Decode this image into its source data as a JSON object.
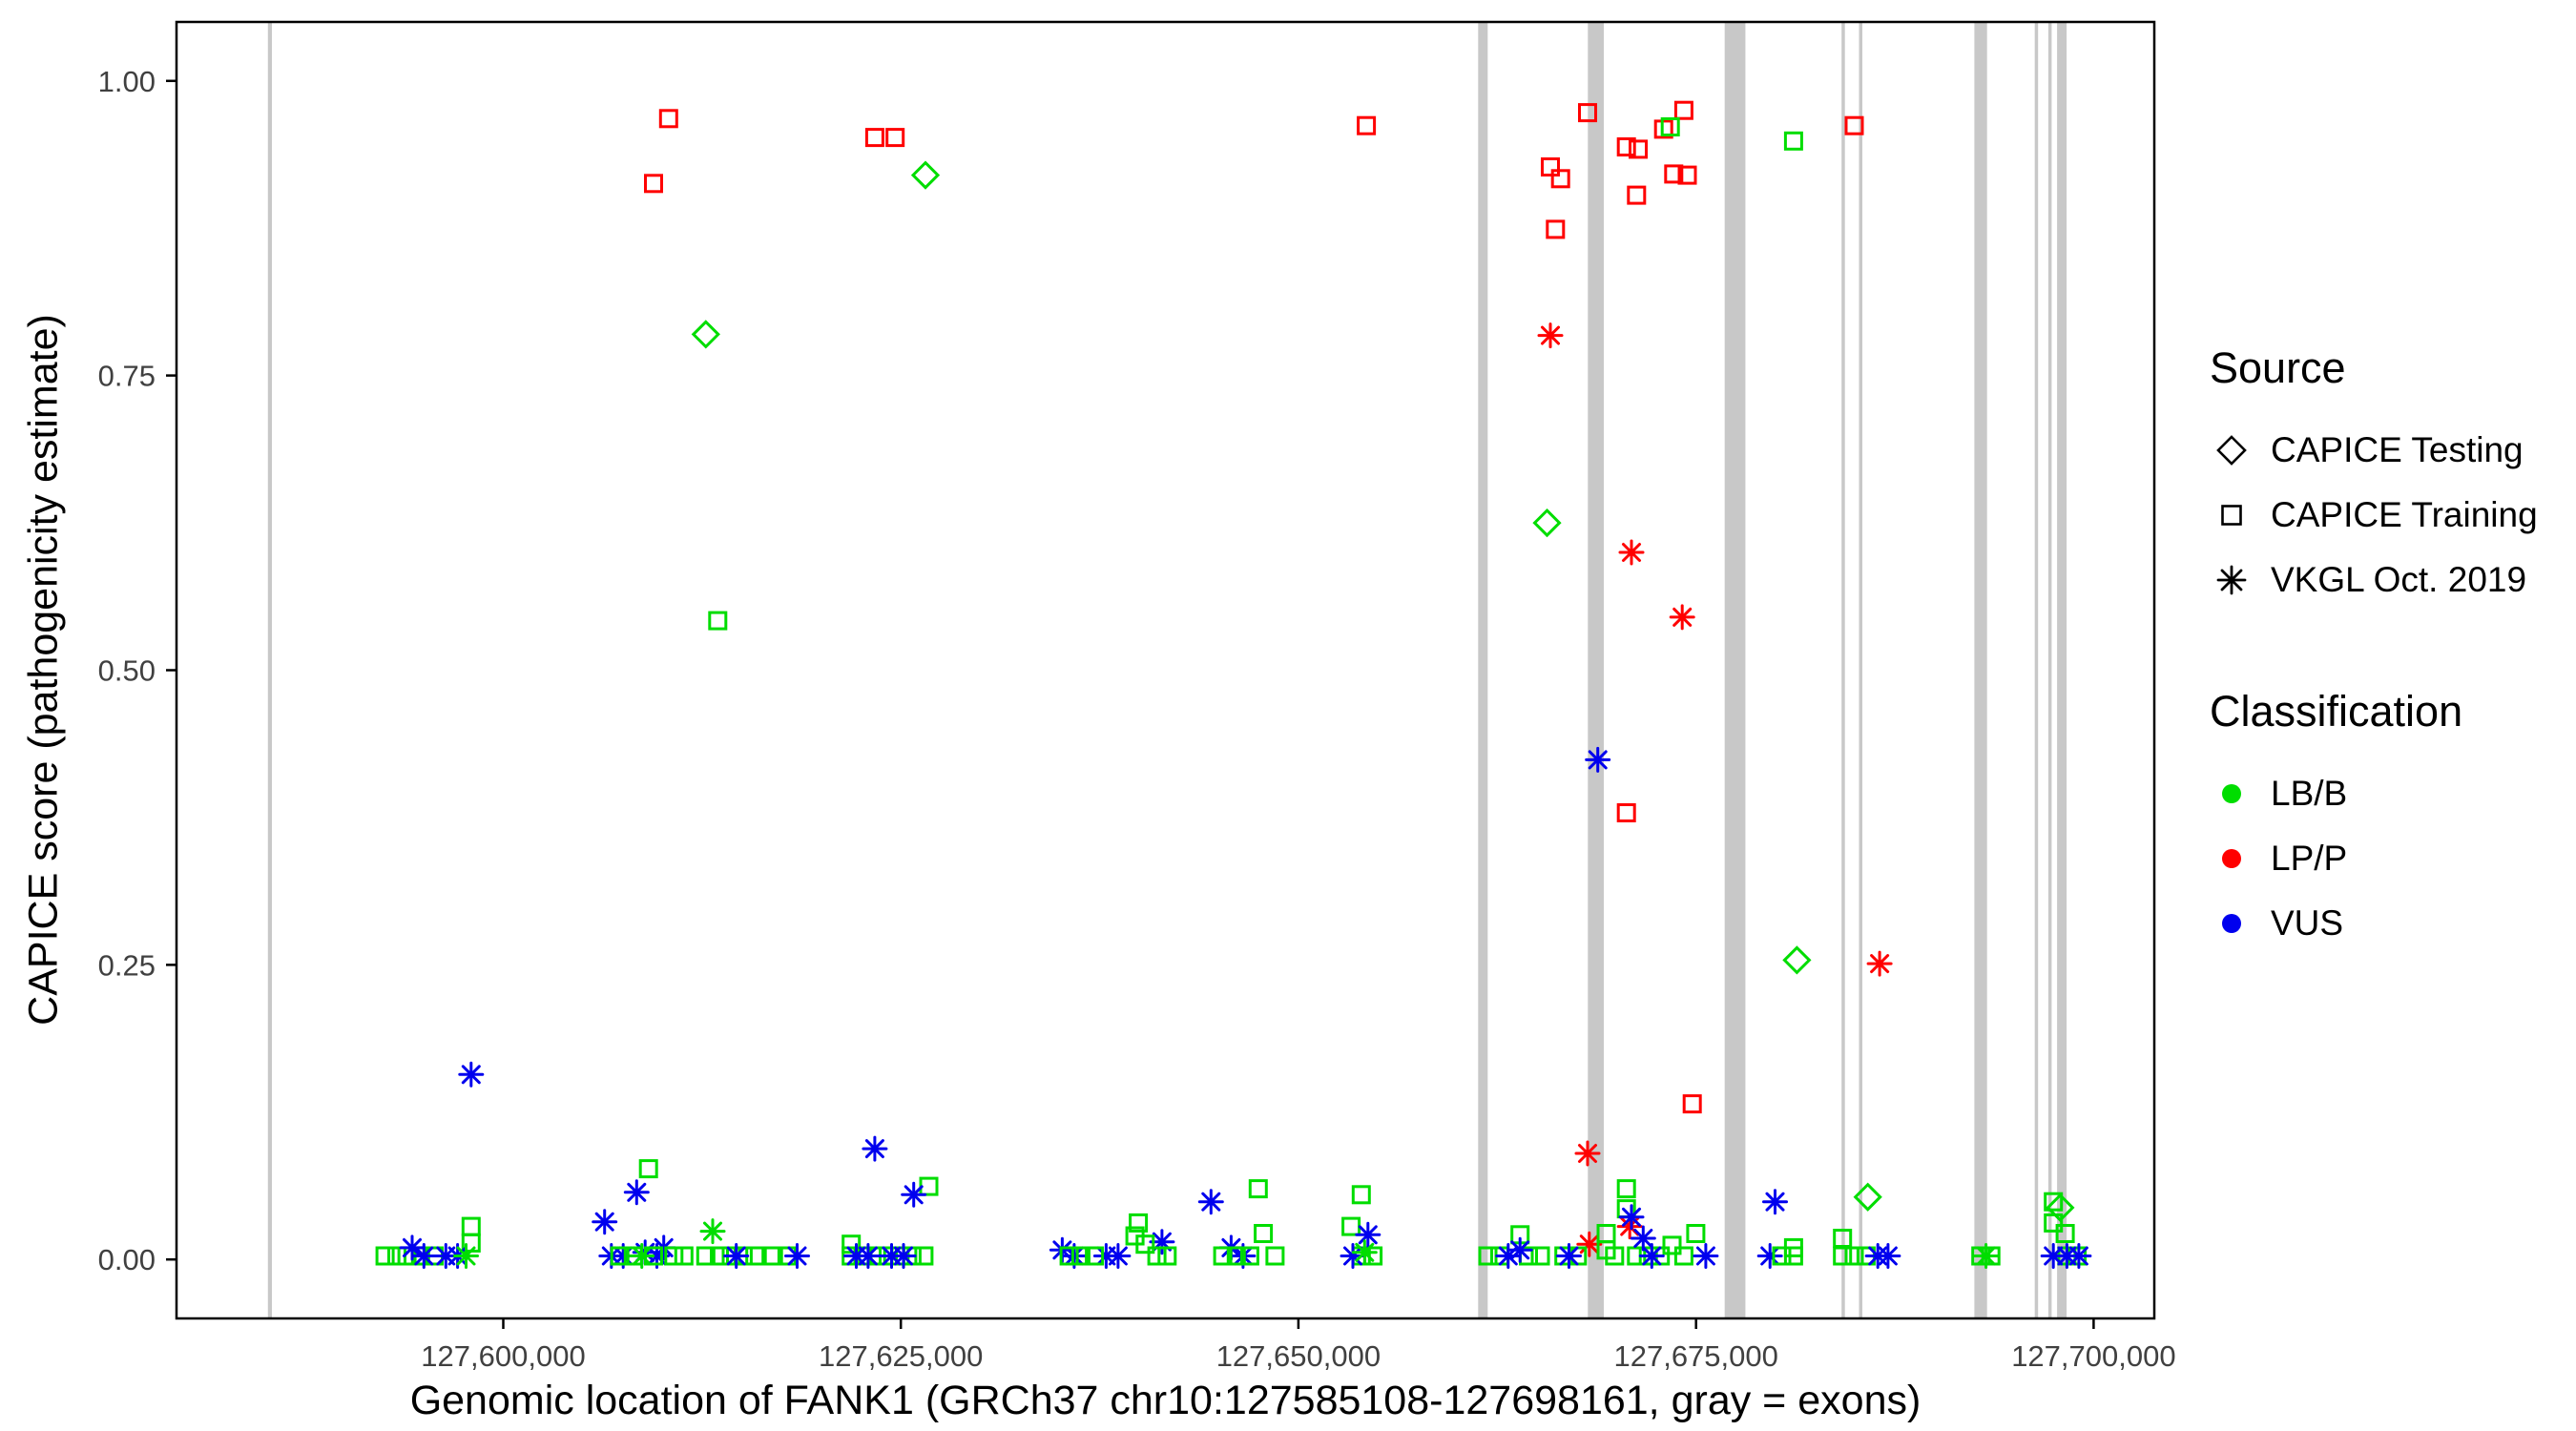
{
  "legend": {
    "source": {
      "title": "Source",
      "items": [
        {
          "label": "CAPICE Testing",
          "marker": "diamond"
        },
        {
          "label": "CAPICE Training",
          "marker": "square"
        },
        {
          "label": "VKGL Oct. 2019",
          "marker": "asterisk"
        }
      ]
    },
    "classification": {
      "title": "Classification",
      "items": [
        {
          "label": "LB/B",
          "color": "#00dd00"
        },
        {
          "label": "LP/P",
          "color": "#ff0000"
        },
        {
          "label": "VUS",
          "color": "#0000ee"
        }
      ]
    }
  },
  "chart_data": {
    "type": "scatter",
    "title": "",
    "xlabel": "Genomic location of FANK1 (GRCh37 chr10:127585108-127698161, gray = exons)",
    "ylabel": "CAPICE score (pathogenicity estimate)",
    "xlim": [
      127579455,
      127703814
    ],
    "ylim": [
      -0.05,
      1.05
    ],
    "grid": false,
    "legend_position": "right",
    "xticks": [
      {
        "value": 127600000,
        "label": "127,600,000"
      },
      {
        "value": 127625000,
        "label": "127,625,000"
      },
      {
        "value": 127650000,
        "label": "127,650,000"
      },
      {
        "value": 127675000,
        "label": "127,675,000"
      },
      {
        "value": 127700000,
        "label": "127,700,000"
      }
    ],
    "yticks": [
      {
        "value": 0.0,
        "label": "0.00"
      },
      {
        "value": 0.25,
        "label": "0.25"
      },
      {
        "value": 0.5,
        "label": "0.50"
      },
      {
        "value": 0.75,
        "label": "0.75"
      },
      {
        "value": 1.0,
        "label": "1.00"
      }
    ],
    "exon_color": "#c8c8c8",
    "colors": {
      "B": "#00dd00",
      "P": "#ff0000",
      "U": "#0000ee"
    },
    "codes": {
      "source": {
        "T": "CAPICE Training (open square)",
        "E": "CAPICE Testing (open diamond)",
        "V": "VKGL Oct. 2019 (asterisk)"
      },
      "classification": {
        "B": "LB/B (green)",
        "P": "LP/P (red)",
        "U": "VUS (blue)"
      }
    },
    "point_format": [
      "x_genomic_position",
      "capice_score",
      "source_code",
      "classification_code"
    ],
    "exons": [
      [
        127585200,
        127585450
      ],
      [
        127661300,
        127661900
      ],
      [
        127668200,
        127669200
      ],
      [
        127676800,
        127678100
      ],
      [
        127684150,
        127684320
      ],
      [
        127685250,
        127685420
      ],
      [
        127692500,
        127693300
      ],
      [
        127696300,
        127696460
      ],
      [
        127697150,
        127697310
      ],
      [
        127697700,
        127698300
      ]
    ],
    "points": [
      [
        127610400,
        0.968,
        "T",
        "P"
      ],
      [
        127609450,
        0.913,
        "T",
        "P"
      ],
      [
        127623360,
        0.952,
        "T",
        "P"
      ],
      [
        127624640,
        0.952,
        "T",
        "P"
      ],
      [
        127654270,
        0.962,
        "T",
        "P"
      ],
      [
        127665840,
        0.927,
        "T",
        "P"
      ],
      [
        127666480,
        0.917,
        "T",
        "P"
      ],
      [
        127666160,
        0.874,
        "T",
        "P"
      ],
      [
        127668180,
        0.973,
        "T",
        "P"
      ],
      [
        127670620,
        0.944,
        "T",
        "P"
      ],
      [
        127671360,
        0.942,
        "T",
        "P"
      ],
      [
        127671260,
        0.903,
        "T",
        "P"
      ],
      [
        127672960,
        0.959,
        "T",
        "P"
      ],
      [
        127674230,
        0.975,
        "T",
        "P"
      ],
      [
        127673600,
        0.921,
        "T",
        "P"
      ],
      [
        127674450,
        0.92,
        "T",
        "P"
      ],
      [
        127670620,
        0.379,
        "T",
        "P"
      ],
      [
        127674760,
        0.132,
        "T",
        "P"
      ],
      [
        127684950,
        0.962,
        "T",
        "P"
      ],
      [
        127665840,
        0.784,
        "V",
        "P"
      ],
      [
        127670940,
        0.6,
        "V",
        "P"
      ],
      [
        127674130,
        0.545,
        "V",
        "P"
      ],
      [
        127686540,
        0.251,
        "V",
        "P"
      ],
      [
        127668180,
        0.09,
        "V",
        "P"
      ],
      [
        127668290,
        0.013,
        "V",
        "P"
      ],
      [
        127670830,
        0.028,
        "V",
        "P"
      ],
      [
        127668820,
        0.424,
        "V",
        "U"
      ],
      [
        127597980,
        0.157,
        "V",
        "U"
      ],
      [
        127626550,
        0.92,
        "E",
        "B"
      ],
      [
        127612740,
        0.785,
        "E",
        "B"
      ],
      [
        127665630,
        0.625,
        "E",
        "B"
      ],
      [
        127681340,
        0.254,
        "E",
        "B"
      ],
      [
        127685800,
        0.053,
        "E",
        "B"
      ],
      [
        127697900,
        0.044,
        "E",
        "B"
      ],
      [
        127613490,
        0.542,
        "T",
        "B"
      ],
      [
        127673380,
        0.961,
        "T",
        "B"
      ],
      [
        127681130,
        0.949,
        "T",
        "B"
      ],
      [
        127592570,
        0.003,
        "T",
        "B"
      ],
      [
        127593310,
        0.003,
        "T",
        "B"
      ],
      [
        127593950,
        0.003,
        "T",
        "B"
      ],
      [
        127594800,
        0.003,
        "T",
        "B"
      ],
      [
        127595650,
        0.003,
        "T",
        "B"
      ],
      [
        127597980,
        0.028,
        "T",
        "B"
      ],
      [
        127597980,
        0.014,
        "T",
        "B"
      ],
      [
        127594270,
        0.01,
        "V",
        "U"
      ],
      [
        127595010,
        0.003,
        "V",
        "U"
      ],
      [
        127596390,
        0.003,
        "V",
        "U"
      ],
      [
        127597130,
        0.003,
        "V",
        "U"
      ],
      [
        127597660,
        0.003,
        "V",
        "B"
      ],
      [
        127606370,
        0.032,
        "V",
        "U"
      ],
      [
        127608390,
        0.057,
        "V",
        "U"
      ],
      [
        127606800,
        0.003,
        "V",
        "U"
      ],
      [
        127607540,
        0.003,
        "V",
        "U"
      ],
      [
        127608920,
        0.006,
        "V",
        "U"
      ],
      [
        127609660,
        0.003,
        "V",
        "U"
      ],
      [
        127610090,
        0.01,
        "V",
        "U"
      ],
      [
        127609130,
        0.077,
        "T",
        "B"
      ],
      [
        127607330,
        0.003,
        "T",
        "B"
      ],
      [
        127608180,
        0.003,
        "T",
        "B"
      ],
      [
        127609450,
        0.003,
        "T",
        "B"
      ],
      [
        127610730,
        0.003,
        "T",
        "B"
      ],
      [
        127611360,
        0.003,
        "T",
        "B"
      ],
      [
        127608710,
        0.003,
        "V",
        "B"
      ],
      [
        127613170,
        0.024,
        "V",
        "B"
      ],
      [
        127612740,
        0.003,
        "T",
        "B"
      ],
      [
        127613590,
        0.003,
        "T",
        "B"
      ],
      [
        127614340,
        0.003,
        "T",
        "B"
      ],
      [
        127615080,
        0.003,
        "T",
        "B"
      ],
      [
        127615820,
        0.003,
        "T",
        "B"
      ],
      [
        127614650,
        0.003,
        "V",
        "U"
      ],
      [
        127616990,
        0.003,
        "T",
        "B"
      ],
      [
        127617840,
        0.003,
        "T",
        "B"
      ],
      [
        127618480,
        0.003,
        "V",
        "U"
      ],
      [
        127621880,
        0.013,
        "T",
        "B"
      ],
      [
        127621880,
        0.003,
        "T",
        "B"
      ],
      [
        127622620,
        0.003,
        "T",
        "B"
      ],
      [
        127623470,
        0.003,
        "T",
        "B"
      ],
      [
        127624210,
        0.003,
        "T",
        "B"
      ],
      [
        127624950,
        0.003,
        "T",
        "B"
      ],
      [
        127625700,
        0.003,
        "T",
        "B"
      ],
      [
        127626450,
        0.003,
        "T",
        "B"
      ],
      [
        127626760,
        0.062,
        "T",
        "B"
      ],
      [
        127623360,
        0.094,
        "V",
        "U"
      ],
      [
        127625810,
        0.055,
        "V",
        "U"
      ],
      [
        127622200,
        0.003,
        "V",
        "U"
      ],
      [
        127622940,
        0.003,
        "V",
        "U"
      ],
      [
        127624420,
        0.003,
        "V",
        "U"
      ],
      [
        127625170,
        0.003,
        "V",
        "U"
      ],
      [
        127635150,
        0.008,
        "V",
        "U"
      ],
      [
        127635900,
        0.003,
        "V",
        "U"
      ],
      [
        127637910,
        0.003,
        "V",
        "U"
      ],
      [
        127638660,
        0.003,
        "V",
        "U"
      ],
      [
        127641420,
        0.015,
        "V",
        "U"
      ],
      [
        127635580,
        0.003,
        "T",
        "B"
      ],
      [
        127636320,
        0.003,
        "T",
        "B"
      ],
      [
        127637170,
        0.003,
        "T",
        "B"
      ],
      [
        127639720,
        0.02,
        "T",
        "B"
      ],
      [
        127639930,
        0.031,
        "T",
        "B"
      ],
      [
        127640360,
        0.013,
        "T",
        "B"
      ],
      [
        127641100,
        0.003,
        "T",
        "B"
      ],
      [
        127641740,
        0.003,
        "T",
        "B"
      ],
      [
        127644500,
        0.049,
        "V",
        "U"
      ],
      [
        127645770,
        0.01,
        "V",
        "U"
      ],
      [
        127646520,
        0.003,
        "V",
        "U"
      ],
      [
        127645240,
        0.003,
        "T",
        "B"
      ],
      [
        127646090,
        0.003,
        "T",
        "B"
      ],
      [
        127646940,
        0.003,
        "T",
        "B"
      ],
      [
        127647470,
        0.06,
        "T",
        "B"
      ],
      [
        127647790,
        0.022,
        "T",
        "B"
      ],
      [
        127648530,
        0.003,
        "T",
        "B"
      ],
      [
        127653310,
        0.028,
        "T",
        "B"
      ],
      [
        127653950,
        0.055,
        "T",
        "B"
      ],
      [
        127653950,
        0.003,
        "T",
        "B"
      ],
      [
        127654690,
        0.003,
        "T",
        "B"
      ],
      [
        127653420,
        0.003,
        "V",
        "U"
      ],
      [
        127654370,
        0.021,
        "V",
        "U"
      ],
      [
        127654160,
        0.006,
        "V",
        "B"
      ],
      [
        127661910,
        0.003,
        "T",
        "B"
      ],
      [
        127662660,
        0.003,
        "T",
        "B"
      ],
      [
        127663930,
        0.021,
        "T",
        "B"
      ],
      [
        127664460,
        0.003,
        "T",
        "B"
      ],
      [
        127665210,
        0.003,
        "T",
        "B"
      ],
      [
        127663190,
        0.003,
        "V",
        "U"
      ],
      [
        127663930,
        0.008,
        "V",
        "U"
      ],
      [
        127666690,
        0.003,
        "T",
        "B"
      ],
      [
        127667540,
        0.003,
        "T",
        "B"
      ],
      [
        127669350,
        0.022,
        "T",
        "B"
      ],
      [
        127669350,
        0.008,
        "T",
        "B"
      ],
      [
        127669880,
        0.003,
        "T",
        "B"
      ],
      [
        127667010,
        0.003,
        "V",
        "U"
      ],
      [
        127670620,
        0.06,
        "T",
        "B"
      ],
      [
        127670620,
        0.043,
        "T",
        "B"
      ],
      [
        127671260,
        0.003,
        "T",
        "B"
      ],
      [
        127672000,
        0.003,
        "T",
        "B"
      ],
      [
        127672750,
        0.003,
        "T",
        "B"
      ],
      [
        127673490,
        0.012,
        "T",
        "B"
      ],
      [
        127674230,
        0.003,
        "T",
        "B"
      ],
      [
        127674980,
        0.022,
        "T",
        "B"
      ],
      [
        127670940,
        0.036,
        "V",
        "U"
      ],
      [
        127671680,
        0.018,
        "V",
        "U"
      ],
      [
        127672220,
        0.003,
        "V",
        "U"
      ],
      [
        127675610,
        0.003,
        "V",
        "U"
      ],
      [
        127679970,
        0.049,
        "V",
        "U"
      ],
      [
        127679650,
        0.003,
        "V",
        "U"
      ],
      [
        127680390,
        0.003,
        "T",
        "B"
      ],
      [
        127681130,
        0.01,
        "T",
        "B"
      ],
      [
        127681130,
        0.003,
        "T",
        "B"
      ],
      [
        127684210,
        0.018,
        "T",
        "B"
      ],
      [
        127684210,
        0.003,
        "T",
        "B"
      ],
      [
        127684950,
        0.003,
        "T",
        "B"
      ],
      [
        127685690,
        0.003,
        "T",
        "B"
      ],
      [
        127686430,
        0.003,
        "V",
        "U"
      ],
      [
        127687070,
        0.003,
        "V",
        "U"
      ],
      [
        127692910,
        0.003,
        "T",
        "B"
      ],
      [
        127693540,
        0.003,
        "T",
        "B"
      ],
      [
        127693230,
        0.003,
        "V",
        "B"
      ],
      [
        127697470,
        0.049,
        "T",
        "B"
      ],
      [
        127697470,
        0.031,
        "T",
        "B"
      ],
      [
        127698210,
        0.022,
        "T",
        "B"
      ],
      [
        127698320,
        0.003,
        "T",
        "B"
      ],
      [
        127698960,
        0.003,
        "T",
        "B"
      ],
      [
        127697470,
        0.003,
        "V",
        "U"
      ],
      [
        127698320,
        0.003,
        "V",
        "U"
      ],
      [
        127699070,
        0.003,
        "V",
        "U"
      ]
    ]
  }
}
